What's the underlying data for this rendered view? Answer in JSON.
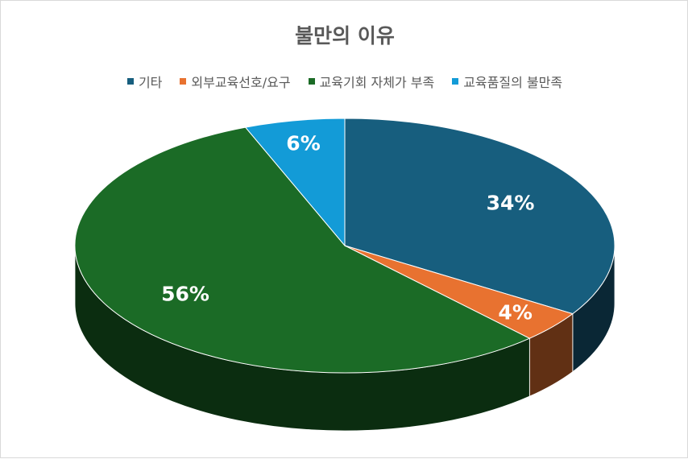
{
  "chart_data": {
    "type": "pie",
    "title": "불만의 이유",
    "categories": [
      "기타",
      "외부교육선호/요구",
      "교육기회 자체가 부족",
      "교육품질의 불만족"
    ],
    "values": [
      34,
      4,
      56,
      6
    ],
    "value_labels": [
      "34%",
      "4%",
      "56%",
      "6%"
    ],
    "colors": [
      "#175e7e",
      "#e87230",
      "#1b6b26",
      "#139bd7"
    ],
    "legend_position": "top",
    "style": "3d-pie"
  }
}
